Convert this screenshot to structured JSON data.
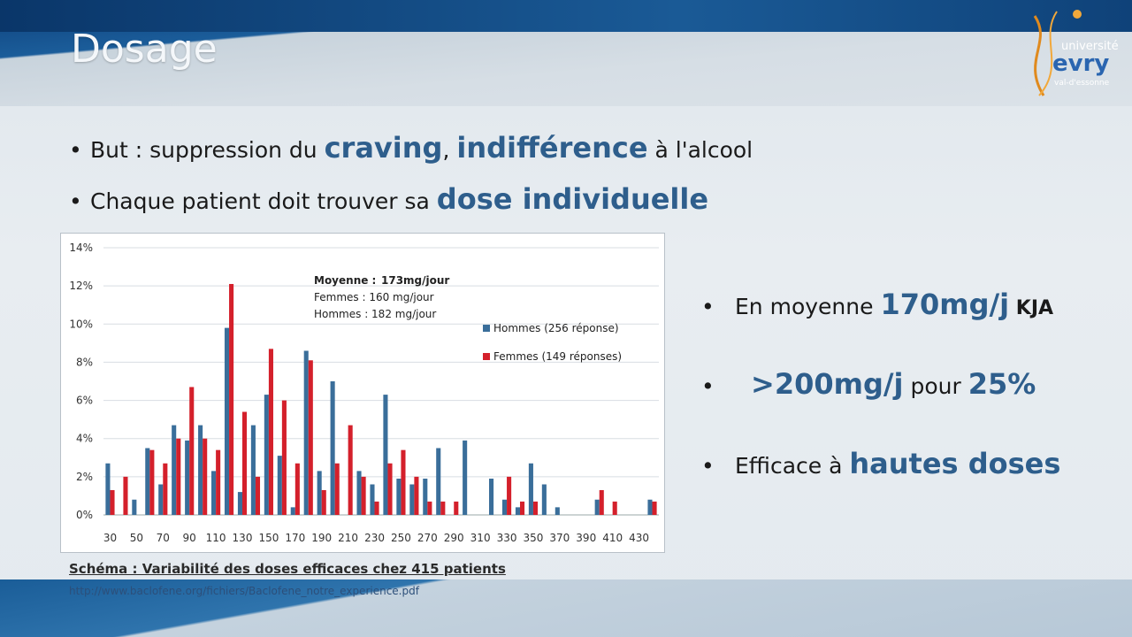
{
  "slide": {
    "title": "Dosage",
    "logo": {
      "line1": "université",
      "line2": "evry",
      "line3": "val-d'essonne"
    },
    "bullets_top": [
      {
        "pre": "But : suppression du ",
        "hl1": "craving",
        "mid": ", ",
        "hl2": "indifférence",
        "post": " à l'alcool"
      },
      {
        "pre": "Chaque patient doit trouver sa ",
        "hl1": "dose individuelle"
      }
    ],
    "bullets_right": [
      {
        "pre": "En moyenne ",
        "hl": "170mg/j",
        "post": " KJA"
      },
      {
        "hl": ">200mg/j",
        "mid": " pour ",
        "hl2": "25%"
      },
      {
        "pre": "Efficace à ",
        "hl": "hautes doses"
      }
    ],
    "caption": "Schéma : Variabilité des doses efficaces chez 415 patients",
    "url": "http://www.baclofene.org/fichiers/Baclofene_notre_experience.pdf"
  },
  "chart_data": {
    "type": "bar",
    "categories": [
      30,
      40,
      50,
      60,
      70,
      80,
      90,
      100,
      110,
      120,
      130,
      140,
      150,
      160,
      170,
      180,
      190,
      200,
      210,
      220,
      230,
      240,
      250,
      260,
      270,
      280,
      290,
      300,
      310,
      320,
      330,
      340,
      350,
      360,
      370,
      380,
      390,
      400,
      410,
      420,
      430,
      440
    ],
    "x_tick_labels": [
      "30",
      "50",
      "70",
      "90",
      "110",
      "130",
      "150",
      "170",
      "190",
      "210",
      "230",
      "250",
      "270",
      "290",
      "310",
      "330",
      "350",
      "370",
      "390",
      "410",
      "430"
    ],
    "ylim": [
      0,
      14
    ],
    "y_tick_labels": [
      "0%",
      "2%",
      "4%",
      "6%",
      "8%",
      "10%",
      "12%",
      "14%"
    ],
    "annotation": {
      "line1_label": "Moyenne :",
      "line1_value": "173mg/jour",
      "line2": "Femmes : 160 mg/jour",
      "line3": "Hommes : 182 mg/jour"
    },
    "legend_position": "right",
    "series": [
      {
        "name": "Hommes (256 réponse)",
        "color": "#3a6e9a",
        "values": [
          2.7,
          0,
          0.8,
          3.5,
          1.6,
          4.7,
          3.9,
          4.7,
          2.3,
          9.8,
          1.2,
          4.7,
          6.3,
          3.1,
          0.4,
          8.6,
          2.3,
          7.0,
          0,
          2.3,
          1.6,
          6.3,
          1.9,
          1.6,
          1.9,
          3.5,
          0,
          3.9,
          0,
          1.9,
          0.8,
          0.4,
          2.7,
          1.6,
          0.4,
          0,
          0,
          0.8,
          0,
          0,
          0,
          0.8
        ]
      },
      {
        "name": "Femmes (149 réponses)",
        "color": "#d4202b",
        "values": [
          1.3,
          2.0,
          0,
          3.4,
          2.7,
          4.0,
          6.7,
          4.0,
          3.4,
          12.1,
          5.4,
          2.0,
          8.7,
          6.0,
          2.7,
          8.1,
          1.3,
          2.7,
          4.7,
          2.0,
          0.7,
          2.7,
          3.4,
          2.0,
          0.7,
          0.7,
          0.7,
          0,
          0,
          0,
          2.0,
          0.7,
          0.7,
          0,
          0,
          0,
          0,
          1.3,
          0.7,
          0,
          0,
          0.7
        ]
      }
    ]
  }
}
